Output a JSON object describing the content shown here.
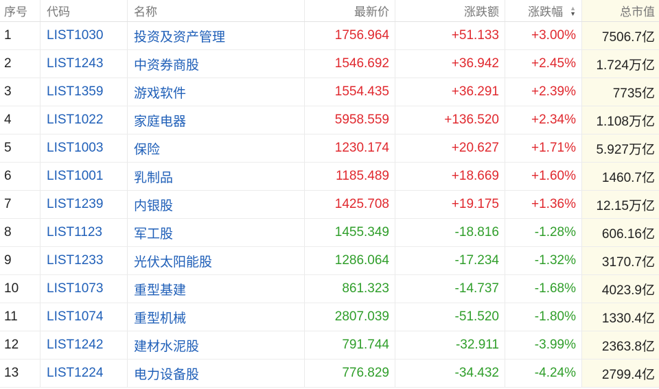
{
  "columns": {
    "index": "序号",
    "code": "代码",
    "name": "名称",
    "price": "最新价",
    "change": "涨跌额",
    "change_pct": "涨跌幅",
    "market_cap": "总市值"
  },
  "colors": {
    "up": "#e0282e",
    "down": "#2f9e2a",
    "link": "#1f5fb8"
  },
  "rows": [
    {
      "index": "1",
      "code": "LIST1030",
      "name": "投资及资产管理",
      "price": "1756.964",
      "change": "+51.133",
      "change_pct": "+3.00%",
      "market_cap": "7506.7亿",
      "dir": "up"
    },
    {
      "index": "2",
      "code": "LIST1243",
      "name": "中资券商股",
      "price": "1546.692",
      "change": "+36.942",
      "change_pct": "+2.45%",
      "market_cap": "1.724万亿",
      "dir": "up"
    },
    {
      "index": "3",
      "code": "LIST1359",
      "name": "游戏软件",
      "price": "1554.435",
      "change": "+36.291",
      "change_pct": "+2.39%",
      "market_cap": "7735亿",
      "dir": "up"
    },
    {
      "index": "4",
      "code": "LIST1022",
      "name": "家庭电器",
      "price": "5958.559",
      "change": "+136.520",
      "change_pct": "+2.34%",
      "market_cap": "1.108万亿",
      "dir": "up"
    },
    {
      "index": "5",
      "code": "LIST1003",
      "name": "保险",
      "price": "1230.174",
      "change": "+20.627",
      "change_pct": "+1.71%",
      "market_cap": "5.927万亿",
      "dir": "up"
    },
    {
      "index": "6",
      "code": "LIST1001",
      "name": "乳制品",
      "price": "1185.489",
      "change": "+18.669",
      "change_pct": "+1.60%",
      "market_cap": "1460.7亿",
      "dir": "up"
    },
    {
      "index": "7",
      "code": "LIST1239",
      "name": "内银股",
      "price": "1425.708",
      "change": "+19.175",
      "change_pct": "+1.36%",
      "market_cap": "12.15万亿",
      "dir": "up"
    },
    {
      "index": "8",
      "code": "LIST1123",
      "name": "军工股",
      "price": "1455.349",
      "change": "-18.816",
      "change_pct": "-1.28%",
      "market_cap": "606.16亿",
      "dir": "down"
    },
    {
      "index": "9",
      "code": "LIST1233",
      "name": "光伏太阳能股",
      "price": "1286.064",
      "change": "-17.234",
      "change_pct": "-1.32%",
      "market_cap": "3170.7亿",
      "dir": "down"
    },
    {
      "index": "10",
      "code": "LIST1073",
      "name": "重型基建",
      "price": "861.323",
      "change": "-14.737",
      "change_pct": "-1.68%",
      "market_cap": "4023.9亿",
      "dir": "down"
    },
    {
      "index": "11",
      "code": "LIST1074",
      "name": "重型机械",
      "price": "2807.039",
      "change": "-51.520",
      "change_pct": "-1.80%",
      "market_cap": "1330.4亿",
      "dir": "down"
    },
    {
      "index": "12",
      "code": "LIST1242",
      "name": "建材水泥股",
      "price": "791.744",
      "change": "-32.911",
      "change_pct": "-3.99%",
      "market_cap": "2363.8亿",
      "dir": "down"
    },
    {
      "index": "13",
      "code": "LIST1224",
      "name": "电力设备股",
      "price": "776.829",
      "change": "-34.432",
      "change_pct": "-4.24%",
      "market_cap": "2799.4亿",
      "dir": "down"
    }
  ]
}
